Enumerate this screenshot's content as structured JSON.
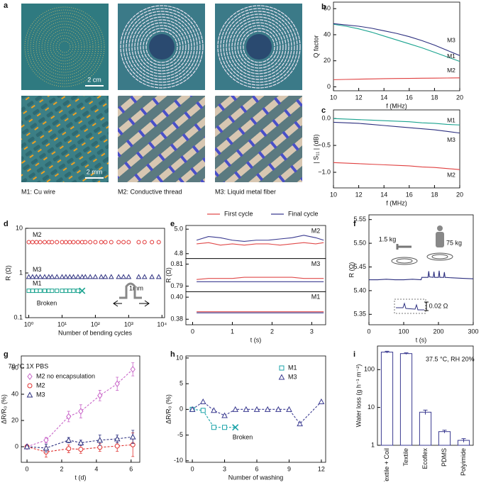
{
  "photos": {
    "panel": "a",
    "scale_top": "2 cm",
    "scale_bottom": "2 mm",
    "captions": [
      "M1: Cu wire",
      "M2: Conductive thread",
      "M3: Liquid metal fiber"
    ]
  },
  "chart_data": [
    {
      "panel": "b",
      "type": "line",
      "xlabel": "f (MHz)",
      "ylabel": "Q factor",
      "label_side": "right",
      "x": [
        10,
        11,
        12,
        13,
        14,
        15,
        16,
        17,
        18,
        19,
        20
      ],
      "xlim": [
        10,
        20
      ],
      "xticks": [
        10,
        12,
        14,
        16,
        18,
        20
      ],
      "ylim": [
        -3,
        65
      ],
      "yticks": [
        0,
        20,
        40,
        60
      ],
      "series": [
        {
          "name": "M1",
          "color": "#1aa38f",
          "values": [
            48,
            46.5,
            44.5,
            42,
            39,
            36,
            33,
            30,
            26.5,
            23,
            19.5
          ]
        },
        {
          "name": "M2",
          "color": "#e04040",
          "values": [
            5.5,
            5.7,
            5.9,
            6.1,
            6.3,
            6.4,
            6.5,
            6.6,
            6.7,
            6.8,
            6.9
          ]
        },
        {
          "name": "M3",
          "color": "#2c2f7f",
          "values": [
            48.5,
            47.5,
            46.5,
            45,
            43,
            41,
            38.5,
            35.5,
            32,
            28,
            24
          ]
        }
      ]
    },
    {
      "panel": "c",
      "type": "line",
      "xlabel": "f (MHz)",
      "ylabel": "| S₁₁ | (dB)",
      "label_side": "right",
      "x": [
        10,
        11,
        12,
        13,
        14,
        15,
        16,
        17,
        18,
        19,
        20
      ],
      "xlim": [
        10,
        20
      ],
      "xticks": [
        10,
        12,
        14,
        16,
        18,
        20
      ],
      "ylim": [
        -1.29,
        0.16
      ],
      "yticks": [
        {
          "value": -1,
          "label": "−1.0"
        },
        {
          "value": -0.5,
          "label": "−0.5"
        },
        {
          "value": 0,
          "label": "0.0"
        }
      ],
      "series": [
        {
          "name": "M1",
          "color": "#1aa38f",
          "values": [
            0,
            -0.01,
            -0.02,
            -0.03,
            -0.04,
            -0.05,
            -0.06,
            -0.08,
            -0.09,
            -0.11,
            -0.12
          ]
        },
        {
          "name": "M2",
          "color": "#e04040",
          "values": [
            -0.82,
            -0.83,
            -0.84,
            -0.85,
            -0.86,
            -0.87,
            -0.88,
            -0.9,
            -0.91,
            -0.93,
            -0.95
          ]
        },
        {
          "name": "M3",
          "color": "#2c2f7f",
          "values": [
            -0.07,
            -0.08,
            -0.09,
            -0.11,
            -0.13,
            -0.15,
            -0.17,
            -0.19,
            -0.21,
            -0.24,
            -0.27
          ]
        }
      ]
    },
    {
      "panel": "d",
      "type": "scatter",
      "xlabel": "Number of bending cycles",
      "ylabel": "R (Ω)",
      "label_side": "left",
      "log_x": true,
      "log_y": true,
      "xlim": [
        0.8,
        12000
      ],
      "xticks": [
        {
          "value": 1,
          "label": "10⁰"
        },
        {
          "value": 10,
          "label": "10¹"
        },
        {
          "value": 100,
          "label": "10²"
        },
        {
          "value": 1000,
          "label": "10³"
        },
        {
          "value": 10000,
          "label": "10⁴"
        }
      ],
      "ylim": [
        0.1,
        10
      ],
      "yticks": [
        0.1,
        1,
        10
      ],
      "annotations": [
        "Broken",
        "1mm"
      ],
      "series": [
        {
          "name": "M2",
          "color": "#e03030",
          "marker": "circle",
          "x": [
            1,
            1.3,
            1.7,
            2.2,
            3,
            4,
            5,
            7,
            10,
            13,
            17,
            22,
            30,
            40,
            50,
            70,
            100,
            150,
            200,
            300,
            500,
            700,
            1000,
            2000,
            3000,
            5000,
            8000
          ],
          "values": [
            4.9,
            4.9,
            4.9,
            4.9,
            4.9,
            4.9,
            4.9,
            4.9,
            4.9,
            4.9,
            4.9,
            4.9,
            4.9,
            4.9,
            4.9,
            4.9,
            4.9,
            4.9,
            4.9,
            4.9,
            4.9,
            4.9,
            4.9,
            4.9,
            4.9,
            4.9,
            4.9
          ]
        },
        {
          "name": "M3",
          "color": "#2c2f7f",
          "marker": "triangle",
          "x": [
            1,
            1.3,
            1.7,
            2.2,
            3,
            4,
            5,
            7,
            10,
            13,
            17,
            22,
            30,
            40,
            50,
            70,
            100,
            150,
            200,
            300,
            500,
            700,
            1000,
            2000,
            3000,
            5000,
            8000
          ],
          "values": [
            0.82,
            0.82,
            0.82,
            0.82,
            0.82,
            0.82,
            0.82,
            0.82,
            0.82,
            0.82,
            0.82,
            0.82,
            0.82,
            0.82,
            0.82,
            0.82,
            0.82,
            0.82,
            0.82,
            0.82,
            0.82,
            0.82,
            0.82,
            0.82,
            0.82,
            0.82,
            0.82
          ]
        },
        {
          "name": "M1",
          "color": "#1aa38f",
          "marker": "square",
          "end_marker": "x",
          "x": [
            1,
            1.3,
            1.7,
            2.2,
            3,
            4,
            5,
            7,
            10,
            13,
            17,
            22,
            30,
            40
          ],
          "values": [
            0.4,
            0.4,
            0.4,
            0.4,
            0.4,
            0.4,
            0.4,
            0.4,
            0.4,
            0.4,
            0.4,
            0.4,
            0.4,
            0.4
          ]
        }
      ]
    },
    {
      "panel": "e",
      "type": "line",
      "xlabel": "t (s)",
      "ylabel": "R (Ω)",
      "legend": "top",
      "x": [
        0.1,
        0.4,
        0.7,
        1.0,
        1.3,
        1.6,
        1.9,
        2.2,
        2.5,
        2.8,
        3.1,
        3.3
      ],
      "xlim": [
        -0.17,
        3.35
      ],
      "xticks": [
        0,
        1,
        2,
        3
      ],
      "series": [
        {
          "name": "First cycle",
          "color": "#e04a4a"
        },
        {
          "name": "Final cycle",
          "color": "#3a3a90"
        }
      ],
      "subplots": [
        {
          "label": "M2",
          "ylim": [
            4.76,
            5.03
          ],
          "yticks": [
            4.8,
            {
              "value": 5,
              "label": "5.0"
            }
          ],
          "values": [
            [
              4.88,
              4.89,
              4.87,
              4.88,
              4.87,
              4.88,
              4.88,
              4.87,
              4.88,
              4.89,
              4.88,
              4.89
            ],
            [
              4.91,
              4.94,
              4.93,
              4.91,
              4.9,
              4.91,
              4.91,
              4.92,
              4.93,
              4.95,
              4.93,
              4.91
            ]
          ]
        },
        {
          "label": "M3",
          "ylim": [
            0.785,
            0.815
          ],
          "yticks": [
            0.79,
            0.81
          ],
          "values": [
            [
              0.796,
              0.797,
              0.797,
              0.797,
              0.798,
              0.798,
              0.798,
              0.798,
              0.798,
              0.797,
              0.797,
              0.797
            ],
            [
              0.794,
              0.794,
              0.794,
              0.794,
              0.794,
              0.794,
              0.794,
              0.794,
              0.794,
              0.794,
              0.794,
              0.794
            ]
          ]
        },
        {
          "label": "M1",
          "ylim": [
            0.375,
            0.405
          ],
          "yticks": [
            0.38,
            {
              "value": 0.4,
              "label": "0.40"
            }
          ],
          "values": [
            [
              0.3868,
              0.3868,
              0.3868,
              0.3868,
              0.3868,
              0.3868,
              0.3868,
              0.3868,
              0.3868,
              0.3868,
              0.3868,
              0.3868
            ],
            [
              0.3858,
              0.3858,
              0.3858,
              0.3858,
              0.3858,
              0.3858,
              0.3858,
              0.3858,
              0.3858,
              0.3858,
              0.3858,
              0.3858
            ]
          ]
        }
      ]
    },
    {
      "panel": "f",
      "type": "line",
      "xlabel": "t (s)",
      "ylabel": "R (Ω)",
      "annotations": [
        "1.5 kg",
        "75 kg",
        "0.02 Ω"
      ],
      "x": [
        0,
        25,
        50,
        75,
        100,
        125,
        150,
        152,
        165,
        170,
        172,
        174,
        185,
        187,
        189,
        200,
        202,
        204,
        215,
        217,
        219,
        240,
        270,
        300
      ],
      "xlim": [
        0,
        300
      ],
      "xticks": [
        0,
        100,
        200,
        300
      ],
      "ylim": [
        5.328,
        5.56
      ],
      "yticks": [
        5.35,
        {
          "value": 5.4,
          "label": "5.40"
        },
        5.45,
        {
          "value": 5.5,
          "label": "5.50"
        },
        5.55
      ],
      "series": [
        {
          "color": "#2c2f7f",
          "values": [
            5.423,
            5.423,
            5.424,
            5.423,
            5.423,
            5.424,
            5.423,
            5.428,
            5.428,
            5.428,
            5.441,
            5.429,
            5.428,
            5.44,
            5.428,
            5.428,
            5.442,
            5.428,
            5.428,
            5.439,
            5.428,
            5.427,
            5.426,
            5.425
          ]
        }
      ]
    },
    {
      "panel": "g",
      "type": "line",
      "xlabel": "t (d)",
      "ylabel": "ΔR/R₀ (%)",
      "legend": "upper left",
      "annotations": [
        "70 °C 1X PBS"
      ],
      "xlim": [
        -0.33,
        6.5
      ],
      "xticks": [
        0,
        2,
        4,
        6
      ],
      "ylim": [
        -11.9,
        69.2
      ],
      "yticks": [
        0,
        20,
        40,
        60
      ],
      "series": [
        {
          "name": "M2 no encapsulation",
          "color": "#c864c8",
          "marker": "diamond",
          "dashed": true,
          "x": [
            0,
            1.1,
            2.4,
            3.1,
            4.2,
            5.2,
            6.1
          ],
          "values": [
            0,
            5,
            23,
            27,
            39,
            48,
            59
          ],
          "errors": [
            1,
            2,
            4,
            5,
            4,
            5,
            5
          ]
        },
        {
          "name": "M2",
          "color": "#e0302e",
          "marker": "circle",
          "dashed": true,
          "x": [
            0,
            1.1,
            2.4,
            3.1,
            4.2,
            5.2,
            6.1
          ],
          "values": [
            0,
            -4,
            -1.5,
            -2,
            -0.5,
            0.5,
            1.5
          ],
          "errors": [
            1,
            4,
            3,
            3,
            3,
            4,
            9
          ]
        },
        {
          "name": "M3",
          "color": "#2c2f7f",
          "marker": "triangle",
          "dashed": true,
          "x": [
            0,
            1.1,
            2.4,
            3.1,
            4.2,
            5.2,
            6.1
          ],
          "values": [
            0,
            -1,
            5,
            3,
            5,
            6,
            7.5
          ],
          "errors": [
            1,
            3,
            2,
            2,
            4,
            3,
            5
          ]
        }
      ]
    },
    {
      "panel": "h",
      "type": "line",
      "xlabel": "Number of washing",
      "ylabel": "ΔR/R₀ (%)",
      "legend": "upper right",
      "annotations": [
        "Broken"
      ],
      "xlim": [
        -0.6,
        12.4
      ],
      "xticks": [
        0,
        3,
        6,
        9,
        12
      ],
      "ylim": [
        -10.3,
        10.4
      ],
      "yticks": [
        -10,
        -5,
        0,
        5,
        10
      ],
      "series": [
        {
          "name": "M1",
          "color": "#1aa3a8",
          "marker": "square",
          "end_marker": "x",
          "dashed": true,
          "x": [
            0,
            1,
            2,
            3,
            4
          ],
          "values": [
            0,
            -0.2,
            -3.5,
            -3.5,
            -3.5
          ]
        },
        {
          "name": "M3",
          "color": "#3a3a90",
          "marker": "triangle",
          "dashed": true,
          "x": [
            0,
            1,
            2,
            3,
            4,
            5,
            6,
            7,
            8,
            9,
            10,
            12
          ],
          "values": [
            0,
            1.5,
            -0.2,
            -1.2,
            0,
            0,
            0,
            0,
            0,
            0,
            -2.8,
            1.5
          ]
        }
      ]
    },
    {
      "panel": "i",
      "type": "bar",
      "ylabel": "Water loss (g h⁻¹ m⁻²)",
      "log_y": true,
      "annotations": [
        "37.5 °C, RH 20%"
      ],
      "categories": [
        "Textile + Coil",
        "Textile",
        "Ecoflex",
        "PDMS",
        "Polyimide"
      ],
      "values": [
        290,
        265,
        7.5,
        2.3,
        1.35
      ],
      "errors": [
        15,
        12,
        1,
        0.2,
        0.15
      ],
      "color": "#3a3a90",
      "ylim": [
        1,
        420
      ],
      "yticks": [
        1,
        10,
        100
      ]
    }
  ]
}
